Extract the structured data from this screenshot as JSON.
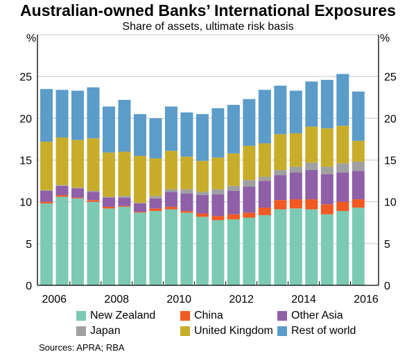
{
  "chart_data": {
    "type": "bar",
    "stacked": true,
    "title": "Australian-owned Banks’ International Exposures",
    "subtitle": "Share of assets, ultimate risk basis",
    "ylabel": "%",
    "ylabel_right": "%",
    "ylim": [
      0,
      30
    ],
    "yticks": [
      0,
      5,
      10,
      15,
      20,
      25
    ],
    "xticklabels": [
      "2006",
      "2008",
      "2010",
      "2012",
      "2014",
      "2016"
    ],
    "x": [
      2006.25,
      2006.75,
      2007.25,
      2007.75,
      2008.25,
      2008.75,
      2009.25,
      2009.75,
      2010.25,
      2010.75,
      2011.25,
      2011.75,
      2012.25,
      2012.75,
      2013.25,
      2013.75,
      2014.25,
      2014.75,
      2015.25,
      2015.75,
      2016.25
    ],
    "grid": true,
    "legend_placement": "bottom",
    "series": [
      {
        "name": "New Zealand",
        "color": "#7ccab4",
        "values": [
          9.8,
          10.6,
          10.4,
          10.0,
          9.2,
          9.4,
          8.7,
          8.9,
          9.1,
          8.7,
          8.2,
          7.8,
          7.9,
          8.1,
          8.4,
          9.1,
          9.2,
          9.1,
          8.5,
          8.9,
          9.3
        ]
      },
      {
        "name": "China",
        "color": "#f15a22",
        "values": [
          0.2,
          0.2,
          0.1,
          0.2,
          0.2,
          0.1,
          0.1,
          0.3,
          0.3,
          0.2,
          0.4,
          0.5,
          0.6,
          0.6,
          0.9,
          1.1,
          1.1,
          1.2,
          1.2,
          1.1,
          1.0
        ]
      },
      {
        "name": "Other Asia",
        "color": "#8f5fa8",
        "values": [
          1.3,
          1.1,
          1.1,
          1.0,
          1.1,
          1.0,
          1.0,
          1.2,
          1.8,
          2.1,
          2.2,
          2.6,
          2.8,
          3.1,
          3.2,
          3.0,
          3.2,
          3.5,
          3.6,
          3.5,
          3.4
        ]
      },
      {
        "name": "Japan",
        "color": "#a0a0a0",
        "values": [
          0.1,
          0.1,
          0.1,
          0.1,
          0.1,
          0.2,
          0.1,
          0.3,
          0.3,
          0.5,
          0.4,
          0.6,
          0.6,
          0.8,
          0.5,
          0.6,
          0.7,
          0.9,
          0.9,
          1.1,
          1.1
        ]
      },
      {
        "name": "United Kingdom",
        "color": "#c8ad2b",
        "values": [
          5.8,
          5.7,
          5.7,
          6.3,
          5.3,
          5.3,
          5.6,
          4.5,
          4.6,
          3.9,
          3.7,
          3.8,
          3.9,
          4.1,
          4.0,
          4.3,
          4.0,
          4.3,
          4.6,
          4.5,
          2.5
        ]
      },
      {
        "name": "Rest of world",
        "color": "#5b9cc9",
        "values": [
          6.3,
          5.7,
          5.9,
          6.1,
          5.5,
          6.2,
          5.0,
          4.8,
          5.3,
          5.3,
          5.6,
          5.9,
          5.8,
          5.6,
          6.4,
          5.8,
          5.1,
          5.4,
          5.8,
          6.2,
          5.9
        ]
      }
    ],
    "source": "Sources:  APRA; RBA"
  }
}
